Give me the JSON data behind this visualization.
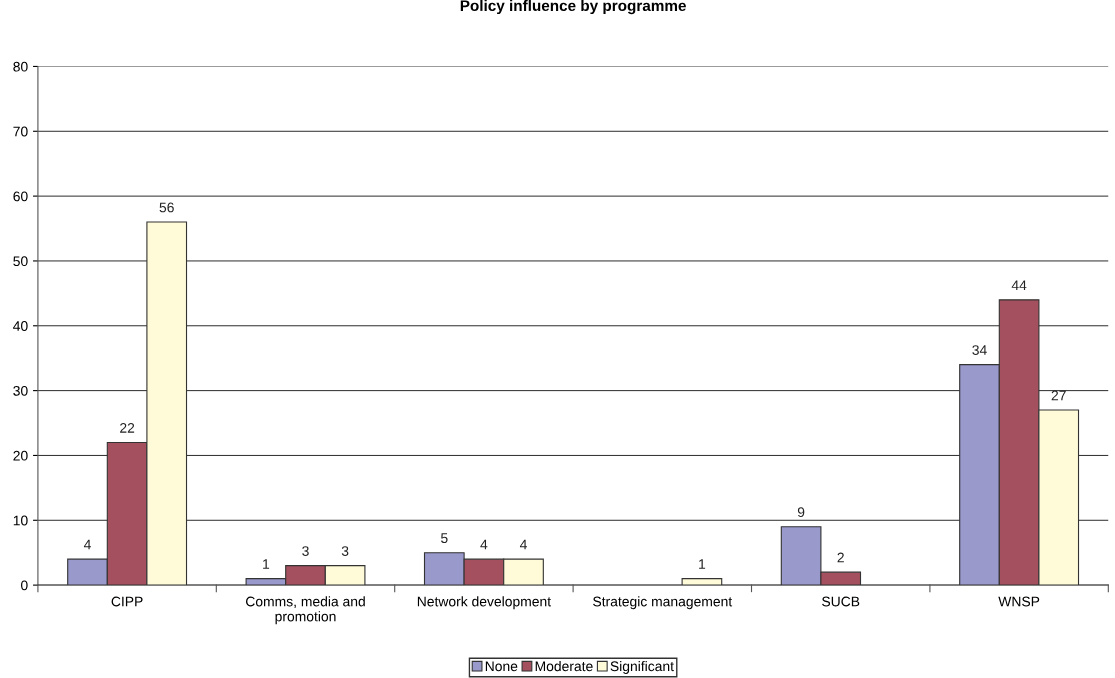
{
  "chart_data": {
    "type": "bar",
    "title": "Policy influence by programme",
    "categories": [
      "CIPP",
      "Comms, media and\npromotion",
      "Network development",
      "Strategic management",
      "SUCB",
      "WNSP"
    ],
    "series": [
      {
        "name": "None",
        "color": "#9999cc",
        "values": [
          4,
          1,
          5,
          null,
          9,
          34
        ]
      },
      {
        "name": "Moderate",
        "color": "#a5505f",
        "values": [
          22,
          3,
          4,
          null,
          2,
          44
        ]
      },
      {
        "name": "Significant",
        "color": "#fffbd9",
        "values": [
          56,
          3,
          4,
          1,
          null,
          27
        ]
      }
    ],
    "ylim": [
      0,
      80
    ],
    "yticks": [
      0,
      10,
      20,
      30,
      40,
      50,
      60,
      70,
      80
    ],
    "grid": "y",
    "legend": "bottom",
    "data_labels": true
  }
}
